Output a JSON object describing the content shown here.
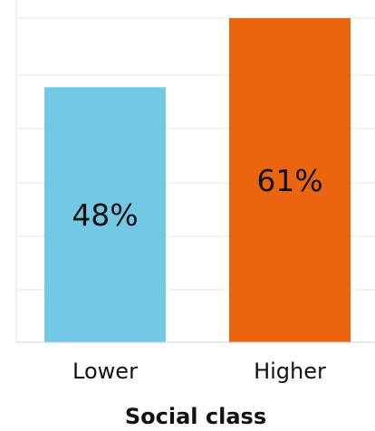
{
  "chart_data": {
    "type": "bar",
    "categories": [
      "Lower",
      "Higher"
    ],
    "values": [
      48,
      61
    ],
    "value_labels": [
      "48%",
      "61%"
    ],
    "colors": [
      "#72c9e6",
      "#eb6511"
    ],
    "xlabel": "Social class",
    "ylabel": "",
    "ylim": [
      0,
      61
    ],
    "grid": true
  }
}
